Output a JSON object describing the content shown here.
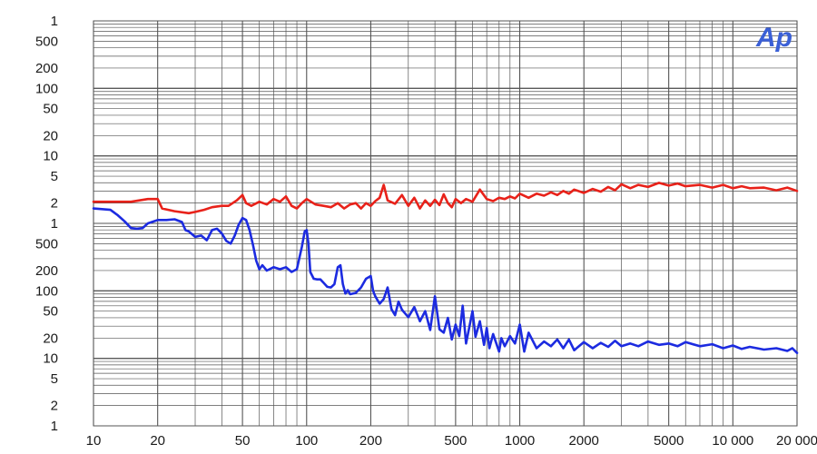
{
  "logo_text": "Ap",
  "chart_data": {
    "type": "line",
    "title": "",
    "xlabel": "",
    "ylabel": "",
    "x_scale": "log",
    "y_scale": "log",
    "grid": true,
    "x_range": [
      10,
      20000
    ],
    "x_tick_labels": [
      {
        "v": 10,
        "label": "10"
      },
      {
        "v": 20,
        "label": "20"
      },
      {
        "v": 50,
        "label": "50"
      },
      {
        "v": 100,
        "label": "100"
      },
      {
        "v": 200,
        "label": "200"
      },
      {
        "v": 500,
        "label": "500"
      },
      {
        "v": 1000,
        "label": "1000"
      },
      {
        "v": 2000,
        "label": "2000"
      },
      {
        "v": 5000,
        "label": "5000"
      },
      {
        "v": 10000,
        "label": "10 000"
      },
      {
        "v": 20000,
        "label": "20 000"
      }
    ],
    "y_tick_labels": [
      {
        "decade": 0,
        "label": "1"
      },
      {
        "decade": 0.301,
        "label": "2"
      },
      {
        "decade": 0.699,
        "label": "5"
      },
      {
        "decade": 1,
        "label": "10"
      },
      {
        "decade": 1.301,
        "label": "20"
      },
      {
        "decade": 1.699,
        "label": "50"
      },
      {
        "decade": 2,
        "label": "100"
      },
      {
        "decade": 2.301,
        "label": "200"
      },
      {
        "decade": 2.699,
        "label": "500"
      },
      {
        "decade": 3,
        "label": "1"
      },
      {
        "decade": 3.301,
        "label": "2"
      },
      {
        "decade": 3.699,
        "label": "5"
      },
      {
        "decade": 4,
        "label": "10"
      },
      {
        "decade": 4.301,
        "label": "20"
      },
      {
        "decade": 4.699,
        "label": "50"
      },
      {
        "decade": 5,
        "label": "100"
      },
      {
        "decade": 5.301,
        "label": "200"
      },
      {
        "decade": 5.699,
        "label": "500"
      },
      {
        "decade": 6,
        "label": "1"
      }
    ],
    "series": [
      {
        "color": "#e8221a",
        "points": [
          [
            10,
            3.32
          ],
          [
            12,
            3.32
          ],
          [
            15,
            3.32
          ],
          [
            18,
            3.36
          ],
          [
            20,
            3.36
          ],
          [
            21,
            3.22
          ],
          [
            24,
            3.18
          ],
          [
            28,
            3.15
          ],
          [
            30,
            3.17
          ],
          [
            33,
            3.2
          ],
          [
            36,
            3.24
          ],
          [
            40,
            3.26
          ],
          [
            43,
            3.26
          ],
          [
            47,
            3.34
          ],
          [
            50,
            3.42
          ],
          [
            52,
            3.3
          ],
          [
            55,
            3.26
          ],
          [
            60,
            3.32
          ],
          [
            65,
            3.28
          ],
          [
            70,
            3.36
          ],
          [
            75,
            3.32
          ],
          [
            80,
            3.4
          ],
          [
            85,
            3.26
          ],
          [
            90,
            3.22
          ],
          [
            95,
            3.3
          ],
          [
            100,
            3.36
          ],
          [
            110,
            3.28
          ],
          [
            120,
            3.26
          ],
          [
            130,
            3.24
          ],
          [
            140,
            3.3
          ],
          [
            150,
            3.22
          ],
          [
            160,
            3.28
          ],
          [
            170,
            3.3
          ],
          [
            180,
            3.22
          ],
          [
            190,
            3.3
          ],
          [
            200,
            3.26
          ],
          [
            210,
            3.33
          ],
          [
            220,
            3.38
          ],
          [
            230,
            3.57
          ],
          [
            240,
            3.34
          ],
          [
            260,
            3.29
          ],
          [
            280,
            3.42
          ],
          [
            300,
            3.26
          ],
          [
            320,
            3.38
          ],
          [
            340,
            3.22
          ],
          [
            360,
            3.34
          ],
          [
            380,
            3.26
          ],
          [
            400,
            3.35
          ],
          [
            420,
            3.27
          ],
          [
            440,
            3.43
          ],
          [
            460,
            3.3
          ],
          [
            480,
            3.24
          ],
          [
            500,
            3.36
          ],
          [
            530,
            3.3
          ],
          [
            560,
            3.36
          ],
          [
            600,
            3.32
          ],
          [
            650,
            3.5
          ],
          [
            700,
            3.36
          ],
          [
            750,
            3.33
          ],
          [
            800,
            3.38
          ],
          [
            850,
            3.36
          ],
          [
            900,
            3.4
          ],
          [
            950,
            3.37
          ],
          [
            1000,
            3.44
          ],
          [
            1100,
            3.38
          ],
          [
            1200,
            3.44
          ],
          [
            1300,
            3.41
          ],
          [
            1400,
            3.46
          ],
          [
            1500,
            3.42
          ],
          [
            1600,
            3.48
          ],
          [
            1700,
            3.44
          ],
          [
            1800,
            3.5
          ],
          [
            2000,
            3.45
          ],
          [
            2200,
            3.51
          ],
          [
            2400,
            3.47
          ],
          [
            2600,
            3.54
          ],
          [
            2800,
            3.49
          ],
          [
            3000,
            3.58
          ],
          [
            3300,
            3.52
          ],
          [
            3600,
            3.57
          ],
          [
            4000,
            3.54
          ],
          [
            4500,
            3.6
          ],
          [
            5000,
            3.56
          ],
          [
            5500,
            3.59
          ],
          [
            6000,
            3.55
          ],
          [
            7000,
            3.57
          ],
          [
            8000,
            3.53
          ],
          [
            9000,
            3.57
          ],
          [
            10000,
            3.52
          ],
          [
            11000,
            3.55
          ],
          [
            12000,
            3.52
          ],
          [
            14000,
            3.53
          ],
          [
            16000,
            3.49
          ],
          [
            18000,
            3.53
          ],
          [
            20000,
            3.48
          ]
        ]
      },
      {
        "color": "#1c2be0",
        "points": [
          [
            10,
            3.22
          ],
          [
            12,
            3.2
          ],
          [
            13,
            3.12
          ],
          [
            14,
            3.03
          ],
          [
            15,
            2.93
          ],
          [
            16,
            2.92
          ],
          [
            17,
            2.93
          ],
          [
            18,
            3.0
          ],
          [
            20,
            3.05
          ],
          [
            22,
            3.05
          ],
          [
            24,
            3.06
          ],
          [
            26,
            3.02
          ],
          [
            27,
            2.9
          ],
          [
            28,
            2.88
          ],
          [
            30,
            2.8
          ],
          [
            32,
            2.82
          ],
          [
            34,
            2.75
          ],
          [
            36,
            2.9
          ],
          [
            38,
            2.92
          ],
          [
            40,
            2.85
          ],
          [
            42,
            2.74
          ],
          [
            44,
            2.7
          ],
          [
            46,
            2.82
          ],
          [
            48,
            2.98
          ],
          [
            50,
            3.08
          ],
          [
            52,
            3.05
          ],
          [
            54,
            2.9
          ],
          [
            56,
            2.68
          ],
          [
            58,
            2.45
          ],
          [
            60,
            2.32
          ],
          [
            62,
            2.38
          ],
          [
            65,
            2.3
          ],
          [
            70,
            2.35
          ],
          [
            75,
            2.32
          ],
          [
            80,
            2.35
          ],
          [
            85,
            2.28
          ],
          [
            90,
            2.32
          ],
          [
            95,
            2.65
          ],
          [
            98,
            2.88
          ],
          [
            100,
            2.9
          ],
          [
            102,
            2.7
          ],
          [
            104,
            2.28
          ],
          [
            108,
            2.18
          ],
          [
            112,
            2.17
          ],
          [
            116,
            2.17
          ],
          [
            120,
            2.12
          ],
          [
            125,
            2.06
          ],
          [
            130,
            2.05
          ],
          [
            135,
            2.1
          ],
          [
            140,
            2.35
          ],
          [
            144,
            2.38
          ],
          [
            148,
            2.1
          ],
          [
            152,
            1.96
          ],
          [
            156,
            2.01
          ],
          [
            160,
            1.95
          ],
          [
            170,
            1.97
          ],
          [
            180,
            2.05
          ],
          [
            190,
            2.18
          ],
          [
            200,
            2.22
          ],
          [
            205,
            2.0
          ],
          [
            210,
            1.92
          ],
          [
            220,
            1.81
          ],
          [
            230,
            1.88
          ],
          [
            240,
            2.05
          ],
          [
            250,
            1.73
          ],
          [
            260,
            1.64
          ],
          [
            270,
            1.84
          ],
          [
            280,
            1.72
          ],
          [
            300,
            1.61
          ],
          [
            320,
            1.76
          ],
          [
            340,
            1.55
          ],
          [
            360,
            1.7
          ],
          [
            380,
            1.42
          ],
          [
            400,
            1.92
          ],
          [
            420,
            1.43
          ],
          [
            440,
            1.38
          ],
          [
            460,
            1.6
          ],
          [
            480,
            1.28
          ],
          [
            500,
            1.5
          ],
          [
            520,
            1.33
          ],
          [
            540,
            1.78
          ],
          [
            560,
            1.22
          ],
          [
            600,
            1.7
          ],
          [
            620,
            1.32
          ],
          [
            650,
            1.55
          ],
          [
            680,
            1.2
          ],
          [
            700,
            1.45
          ],
          [
            720,
            1.15
          ],
          [
            750,
            1.36
          ],
          [
            800,
            1.1
          ],
          [
            820,
            1.3
          ],
          [
            850,
            1.18
          ],
          [
            900,
            1.33
          ],
          [
            950,
            1.22
          ],
          [
            1000,
            1.5
          ],
          [
            1050,
            1.1
          ],
          [
            1100,
            1.38
          ],
          [
            1200,
            1.15
          ],
          [
            1300,
            1.25
          ],
          [
            1400,
            1.18
          ],
          [
            1500,
            1.28
          ],
          [
            1600,
            1.15
          ],
          [
            1700,
            1.28
          ],
          [
            1800,
            1.12
          ],
          [
            2000,
            1.24
          ],
          [
            2200,
            1.15
          ],
          [
            2400,
            1.23
          ],
          [
            2600,
            1.17
          ],
          [
            2800,
            1.26
          ],
          [
            3000,
            1.18
          ],
          [
            3300,
            1.22
          ],
          [
            3600,
            1.18
          ],
          [
            4000,
            1.25
          ],
          [
            4500,
            1.2
          ],
          [
            5000,
            1.22
          ],
          [
            5500,
            1.18
          ],
          [
            6000,
            1.24
          ],
          [
            7000,
            1.18
          ],
          [
            8000,
            1.21
          ],
          [
            9000,
            1.15
          ],
          [
            10000,
            1.19
          ],
          [
            11000,
            1.14
          ],
          [
            12000,
            1.17
          ],
          [
            14000,
            1.13
          ],
          [
            16000,
            1.15
          ],
          [
            18000,
            1.11
          ],
          [
            19000,
            1.15
          ],
          [
            20000,
            1.08
          ]
        ]
      }
    ]
  }
}
